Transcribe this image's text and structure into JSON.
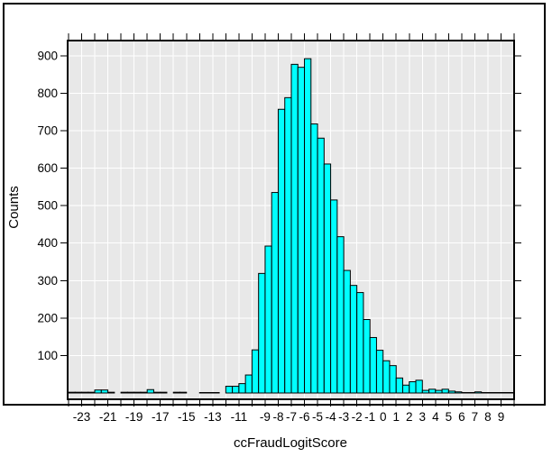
{
  "chart_data": {
    "type": "bar",
    "subtype": "histogram",
    "title": "",
    "xlabel": "ccFraudLogitScore",
    "ylabel": "Counts",
    "xlim": [
      -24,
      10
    ],
    "ylim": [
      0,
      940
    ],
    "bin_start": -24,
    "bin_width": 0.5,
    "counts": [
      2,
      2,
      2,
      2,
      8,
      8,
      2,
      0,
      2,
      2,
      2,
      2,
      9,
      2,
      2,
      0,
      2,
      2,
      0,
      0,
      1,
      1,
      1,
      0,
      18,
      18,
      25,
      48,
      115,
      319,
      392,
      535,
      757,
      788,
      877,
      869,
      892,
      718,
      680,
      611,
      515,
      417,
      327,
      287,
      268,
      196,
      148,
      114,
      86,
      73,
      40,
      21,
      30,
      34,
      7,
      10,
      7,
      10,
      5,
      3,
      1,
      1,
      3,
      1,
      1,
      1,
      1,
      1
    ],
    "x_tick_step": 1,
    "x_tick_label_values": [
      -23,
      -21,
      -19,
      -17,
      -15,
      -13,
      -11,
      -9,
      -8,
      -7,
      -6,
      -5,
      -4,
      -3,
      -2,
      -1,
      0,
      1,
      2,
      3,
      4,
      5,
      6,
      7,
      8,
      9
    ],
    "y_ticks": [
      100,
      200,
      300,
      400,
      500,
      600,
      700,
      800,
      900
    ],
    "grid": {
      "x_every": 1,
      "y_every": 100,
      "color": "#ffffff",
      "on": true
    },
    "legend": null,
    "colors": {
      "bar_fill": "#00ffff",
      "bar_stroke": "#000000",
      "plot_bg": "#e8e8e8",
      "frame": "#000000",
      "outer_border": "#000000",
      "text": "#000000",
      "figure_bg": "#ffffff"
    }
  }
}
